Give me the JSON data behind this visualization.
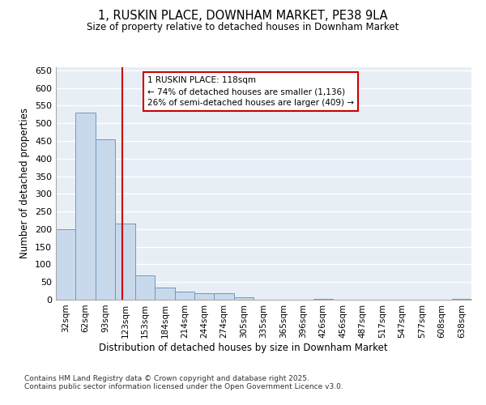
{
  "title": "1, RUSKIN PLACE, DOWNHAM MARKET, PE38 9LA",
  "subtitle": "Size of property relative to detached houses in Downham Market",
  "xlabel": "Distribution of detached houses by size in Downham Market",
  "ylabel": "Number of detached properties",
  "bin_labels": [
    "32sqm",
    "62sqm",
    "93sqm",
    "123sqm",
    "153sqm",
    "184sqm",
    "214sqm",
    "244sqm",
    "274sqm",
    "305sqm",
    "335sqm",
    "365sqm",
    "396sqm",
    "426sqm",
    "456sqm",
    "487sqm",
    "517sqm",
    "547sqm",
    "577sqm",
    "608sqm",
    "638sqm"
  ],
  "bar_heights": [
    200,
    530,
    455,
    215,
    70,
    35,
    22,
    18,
    18,
    6,
    0,
    0,
    0,
    3,
    0,
    0,
    0,
    0,
    0,
    0,
    2
  ],
  "bar_color": "#c9d9ec",
  "bar_edge_color": "#7098bc",
  "background_color": "#e8eef5",
  "grid_color": "#ffffff",
  "vline_color": "#cc0000",
  "annotation_text": "1 RUSKIN PLACE: 118sqm\n← 74% of detached houses are smaller (1,136)\n26% of semi-detached houses are larger (409) →",
  "annotation_box_color": "#cc0000",
  "footer": "Contains HM Land Registry data © Crown copyright and database right 2025.\nContains public sector information licensed under the Open Government Licence v3.0.",
  "ylim": [
    0,
    660
  ],
  "yticks": [
    0,
    50,
    100,
    150,
    200,
    250,
    300,
    350,
    400,
    450,
    500,
    550,
    600,
    650
  ]
}
